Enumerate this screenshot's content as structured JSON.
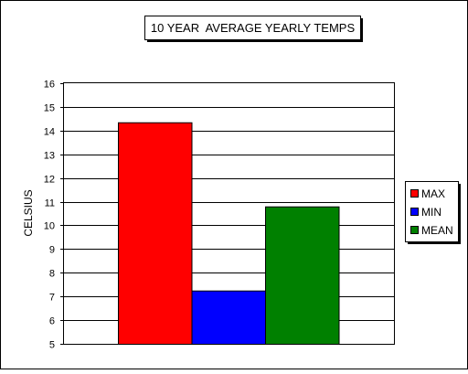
{
  "chart_data": {
    "type": "bar",
    "title": "10 YEAR  AVERAGE YEARLY TEMPS",
    "xlabel": "",
    "ylabel": "CELSIUS",
    "ylim": [
      5,
      16
    ],
    "ytick_step": 1,
    "yticks": [
      "5",
      "6",
      "7",
      "8",
      "9",
      "10",
      "11",
      "12",
      "13",
      "14",
      "15",
      "16"
    ],
    "grid": true,
    "legend_position": "right",
    "series": [
      {
        "name": "MAX",
        "value": 14.35,
        "color": "#ff0000"
      },
      {
        "name": "MIN",
        "value": 7.25,
        "color": "#0000ff"
      },
      {
        "name": "MEAN",
        "value": 10.8,
        "color": "#008000"
      }
    ]
  }
}
